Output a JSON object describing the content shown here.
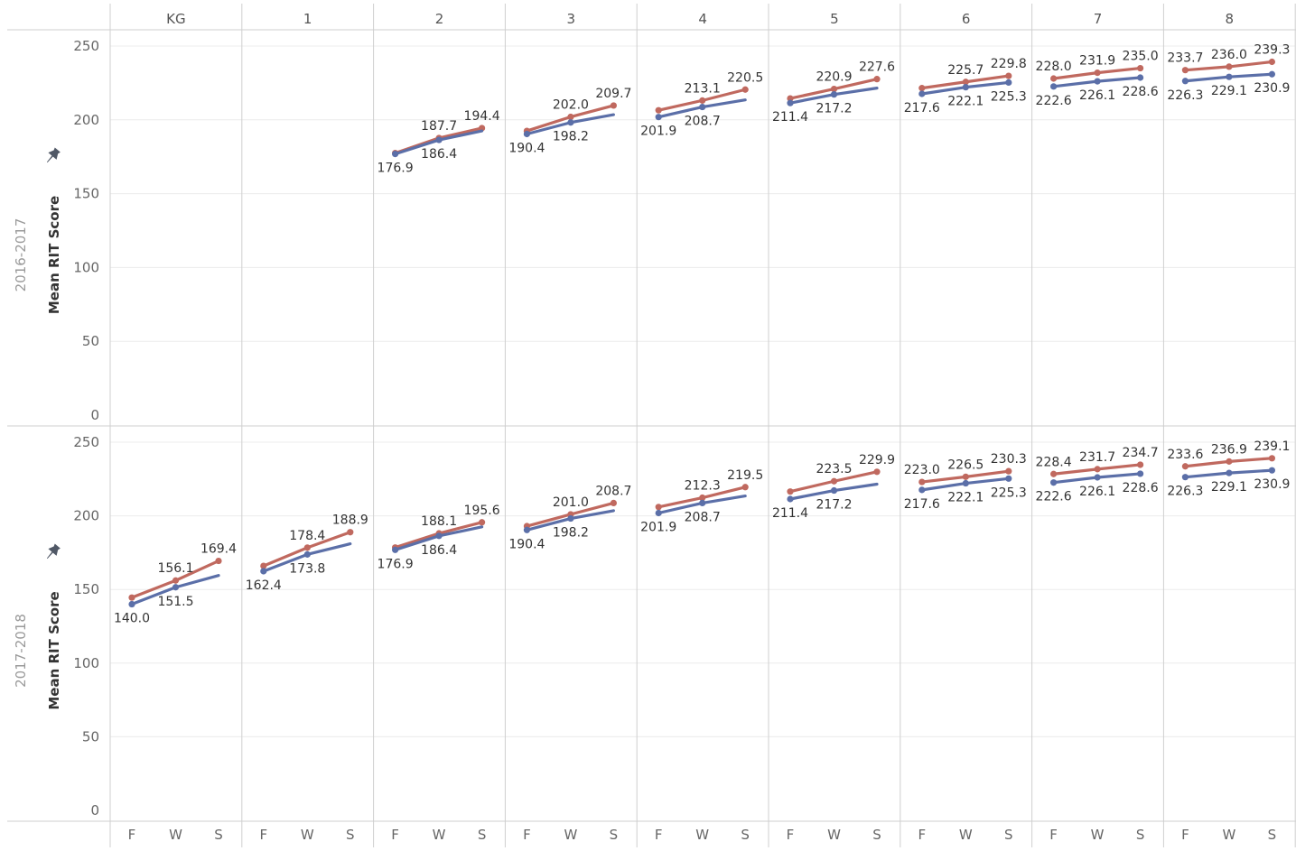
{
  "colors": {
    "series_a": "#c0695f",
    "series_b": "#5b6fa8",
    "grid": "#ececec",
    "divider": "#cfcfcf"
  },
  "chart_data": {
    "type": "line",
    "x": [
      "F",
      "W",
      "S"
    ],
    "ylim": [
      0,
      250
    ],
    "yticks": [
      0,
      50,
      100,
      150,
      200,
      250
    ],
    "ylabel": "Mean RIT Score",
    "grades": [
      "KG",
      "1",
      "2",
      "3",
      "4",
      "5",
      "6",
      "7",
      "8"
    ],
    "pin_icon": "pin-icon",
    "legend": "none",
    "rows": [
      {
        "label": "2016-2017",
        "panels": [
          {
            "grade": "KG",
            "series": []
          },
          {
            "grade": "1",
            "series": []
          },
          {
            "grade": "2",
            "series": [
              {
                "values": [
                  177.5,
                  187.7,
                  194.4
                ],
                "labels": [
                  "",
                  "187.7",
                  "194.4"
                ]
              },
              {
                "values": [
                  176.9,
                  186.4,
                  192.5
                ],
                "labels": [
                  "176.9",
                  "186.4",
                  ""
                ]
              }
            ]
          },
          {
            "grade": "3",
            "series": [
              {
                "values": [
                  192.5,
                  202.0,
                  209.7
                ],
                "labels": [
                  "",
                  "202.0",
                  "209.7"
                ]
              },
              {
                "values": [
                  190.4,
                  198.2,
                  203.5
                ],
                "labels": [
                  "190.4",
                  "198.2",
                  ""
                ]
              }
            ]
          },
          {
            "grade": "4",
            "series": [
              {
                "values": [
                  206.5,
                  213.1,
                  220.5
                ],
                "labels": [
                  "",
                  "213.1",
                  "220.5"
                ]
              },
              {
                "values": [
                  201.9,
                  208.7,
                  213.5
                ],
                "labels": [
                  "201.9",
                  "208.7",
                  ""
                ]
              }
            ]
          },
          {
            "grade": "5",
            "series": [
              {
                "values": [
                  214.5,
                  220.9,
                  227.6
                ],
                "labels": [
                  "",
                  "220.9",
                  "227.6"
                ]
              },
              {
                "values": [
                  211.4,
                  217.2,
                  221.5
                ],
                "labels": [
                  "211.4",
                  "217.2",
                  ""
                ]
              }
            ]
          },
          {
            "grade": "6",
            "series": [
              {
                "values": [
                  221.5,
                  225.7,
                  229.8
                ],
                "labels": [
                  "",
                  "225.7",
                  "229.8"
                ]
              },
              {
                "values": [
                  217.6,
                  222.1,
                  225.3
                ],
                "labels": [
                  "217.6",
                  "222.1",
                  "225.3"
                ]
              }
            ]
          },
          {
            "grade": "7",
            "series": [
              {
                "values": [
                  228.0,
                  231.9,
                  235.0
                ],
                "labels": [
                  "228.0",
                  "231.9",
                  "235.0"
                ]
              },
              {
                "values": [
                  222.6,
                  226.1,
                  228.6
                ],
                "labels": [
                  "222.6",
                  "226.1",
                  "228.6"
                ]
              }
            ]
          },
          {
            "grade": "8",
            "series": [
              {
                "values": [
                  233.7,
                  236.0,
                  239.3
                ],
                "labels": [
                  "233.7",
                  "236.0",
                  "239.3"
                ]
              },
              {
                "values": [
                  226.3,
                  229.1,
                  230.9
                ],
                "labels": [
                  "226.3",
                  "229.1",
                  "230.9"
                ]
              }
            ]
          }
        ]
      },
      {
        "label": "2017-2018",
        "panels": [
          {
            "grade": "KG",
            "series": [
              {
                "values": [
                  144.5,
                  156.1,
                  169.4
                ],
                "labels": [
                  "",
                  "156.1",
                  "169.4"
                ]
              },
              {
                "values": [
                  140.0,
                  151.5,
                  159.5
                ],
                "labels": [
                  "140.0",
                  "151.5",
                  ""
                ]
              }
            ]
          },
          {
            "grade": "1",
            "series": [
              {
                "values": [
                  166.0,
                  178.4,
                  188.9
                ],
                "labels": [
                  "",
                  "178.4",
                  "188.9"
                ]
              },
              {
                "values": [
                  162.4,
                  173.8,
                  181.0
                ],
                "labels": [
                  "162.4",
                  "173.8",
                  ""
                ]
              }
            ]
          },
          {
            "grade": "2",
            "series": [
              {
                "values": [
                  178.5,
                  188.1,
                  195.6
                ],
                "labels": [
                  "",
                  "188.1",
                  "195.6"
                ]
              },
              {
                "values": [
                  176.9,
                  186.4,
                  192.5
                ],
                "labels": [
                  "176.9",
                  "186.4",
                  ""
                ]
              }
            ]
          },
          {
            "grade": "3",
            "series": [
              {
                "values": [
                  193.0,
                  201.0,
                  208.7
                ],
                "labels": [
                  "",
                  "201.0",
                  "208.7"
                ]
              },
              {
                "values": [
                  190.4,
                  198.2,
                  203.5
                ],
                "labels": [
                  "190.4",
                  "198.2",
                  ""
                ]
              }
            ]
          },
          {
            "grade": "4",
            "series": [
              {
                "values": [
                  206.0,
                  212.3,
                  219.5
                ],
                "labels": [
                  "",
                  "212.3",
                  "219.5"
                ]
              },
              {
                "values": [
                  201.9,
                  208.7,
                  213.5
                ],
                "labels": [
                  "201.9",
                  "208.7",
                  ""
                ]
              }
            ]
          },
          {
            "grade": "5",
            "series": [
              {
                "values": [
                  216.5,
                  223.5,
                  229.9
                ],
                "labels": [
                  "",
                  "223.5",
                  "229.9"
                ]
              },
              {
                "values": [
                  211.4,
                  217.2,
                  221.5
                ],
                "labels": [
                  "211.4",
                  "217.2",
                  ""
                ]
              }
            ]
          },
          {
            "grade": "6",
            "series": [
              {
                "values": [
                  223.0,
                  226.5,
                  230.3
                ],
                "labels": [
                  "223.0",
                  "226.5",
                  "230.3"
                ]
              },
              {
                "values": [
                  217.6,
                  222.1,
                  225.3
                ],
                "labels": [
                  "217.6",
                  "222.1",
                  "225.3"
                ]
              }
            ]
          },
          {
            "grade": "7",
            "series": [
              {
                "values": [
                  228.4,
                  231.7,
                  234.7
                ],
                "labels": [
                  "228.4",
                  "231.7",
                  "234.7"
                ]
              },
              {
                "values": [
                  222.6,
                  226.1,
                  228.6
                ],
                "labels": [
                  "222.6",
                  "226.1",
                  "228.6"
                ]
              }
            ]
          },
          {
            "grade": "8",
            "series": [
              {
                "values": [
                  233.6,
                  236.9,
                  239.1
                ],
                "labels": [
                  "233.6",
                  "236.9",
                  "239.1"
                ]
              },
              {
                "values": [
                  226.3,
                  229.1,
                  230.9
                ],
                "labels": [
                  "226.3",
                  "229.1",
                  "230.9"
                ]
              }
            ]
          }
        ]
      }
    ]
  }
}
